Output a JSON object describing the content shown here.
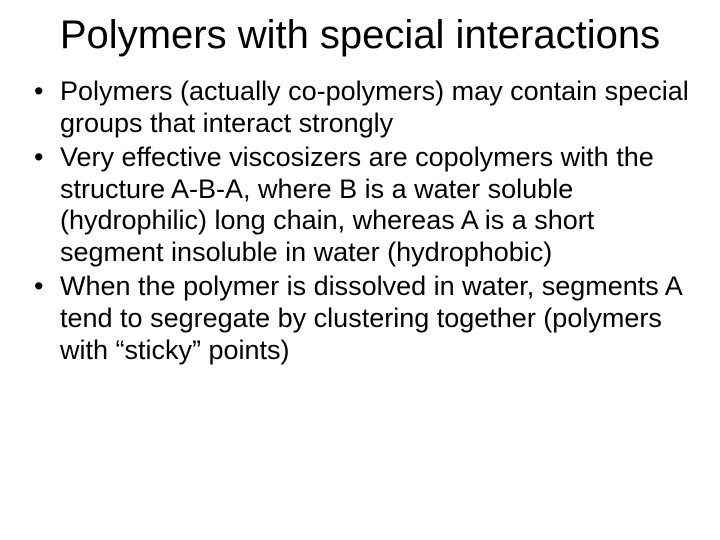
{
  "slide": {
    "title": "Polymers with special interactions",
    "bullets": [
      "Polymers (actually co-polymers) may contain special groups that interact strongly",
      "Very effective viscosizers are copolymers with the structure A-B-A, where B is a water soluble (hydrophilic) long chain, whereas A is a short segment insoluble in water (hydrophobic)",
      "When the polymer is dissolved in water, segments A tend to segregate by clustering together (polymers with “sticky” points)"
    ],
    "colors": {
      "background": "#ffffff",
      "text": "#000000"
    },
    "typography": {
      "title_fontsize": 40,
      "body_fontsize": 27,
      "font_family": "Arial",
      "title_weight": "normal",
      "body_weight": "normal"
    }
  }
}
